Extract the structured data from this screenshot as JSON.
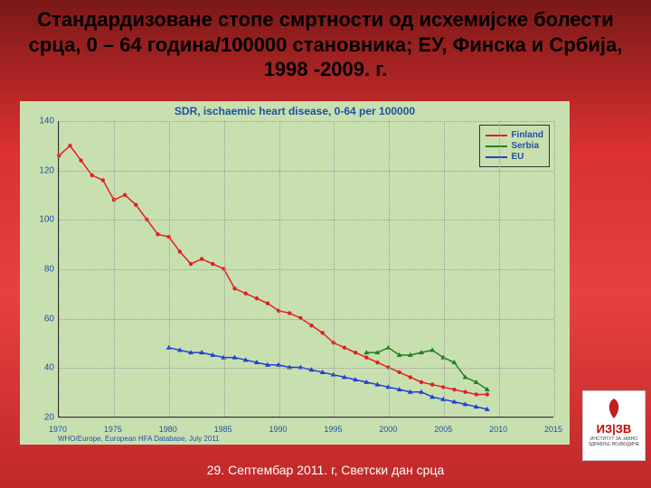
{
  "title": "Стандардизоване стопе смртности од исхемијске болести срца, 0 – 64 година/100000 становника; ЕУ, Финска и Србија, 1998 -2009. г.",
  "footer": "29. Септембар 2011. г, Светски дан срца",
  "logo": {
    "line1": "ИЗ|ЗВ",
    "line2": "ИНСТИТУТ ЗА ЈАВНО ЗДРАВЉЕ ВОЈВОДИНЕ"
  },
  "chart": {
    "type": "line",
    "title": "SDR, ischaemic heart disease, 0-64 per 100000",
    "source": "WHO/Europe, European HFA Database, July 2011",
    "background_color": "#c8e0b0",
    "grid_color": "#999999",
    "axis_label_color": "#2050a0",
    "xlim": [
      1970,
      2015
    ],
    "ylim": [
      20,
      140
    ],
    "yticks": [
      20,
      40,
      60,
      80,
      100,
      120,
      140
    ],
    "xticks": [
      1970,
      1975,
      1980,
      1985,
      1990,
      1995,
      2000,
      2005,
      2010,
      2015
    ],
    "series": [
      {
        "name": "Finland",
        "color": "#e02020",
        "marker": "circle",
        "line_width": 1.5,
        "x": [
          1970,
          1971,
          1972,
          1973,
          1974,
          1975,
          1976,
          1977,
          1978,
          1979,
          1980,
          1981,
          1982,
          1983,
          1984,
          1985,
          1986,
          1987,
          1988,
          1989,
          1990,
          1991,
          1992,
          1993,
          1994,
          1995,
          1996,
          1997,
          1998,
          1999,
          2000,
          2001,
          2002,
          2003,
          2004,
          2005,
          2006,
          2007,
          2008,
          2009
        ],
        "y": [
          126,
          130,
          124,
          118,
          116,
          108,
          110,
          106,
          100,
          94,
          93,
          87,
          82,
          84,
          82,
          80,
          72,
          70,
          68,
          66,
          63,
          62,
          60,
          57,
          54,
          50,
          48,
          46,
          44,
          42,
          40,
          38,
          36,
          34,
          33,
          32,
          31,
          30,
          29,
          29
        ]
      },
      {
        "name": "Serbia",
        "color": "#208020",
        "marker": "triangle",
        "line_width": 1.5,
        "x": [
          1998,
          1999,
          2000,
          2001,
          2002,
          2003,
          2004,
          2005,
          2006,
          2007,
          2008,
          2009
        ],
        "y": [
          46,
          46,
          48,
          45,
          45,
          46,
          47,
          44,
          42,
          36,
          34,
          31
        ]
      },
      {
        "name": "EU",
        "color": "#2040d0",
        "marker": "triangle",
        "line_width": 1.5,
        "x": [
          1980,
          1981,
          1982,
          1983,
          1984,
          1985,
          1986,
          1987,
          1988,
          1989,
          1990,
          1991,
          1992,
          1993,
          1994,
          1995,
          1996,
          1997,
          1998,
          1999,
          2000,
          2001,
          2002,
          2003,
          2004,
          2005,
          2006,
          2007,
          2008,
          2009
        ],
        "y": [
          48,
          47,
          46,
          46,
          45,
          44,
          44,
          43,
          42,
          41,
          41,
          40,
          40,
          39,
          38,
          37,
          36,
          35,
          34,
          33,
          32,
          31,
          30,
          30,
          28,
          27,
          26,
          25,
          24,
          23
        ]
      }
    ],
    "legend": {
      "position": "top-right",
      "items": [
        {
          "label": "Finland",
          "color": "#e02020"
        },
        {
          "label": "Serbia",
          "color": "#208020"
        },
        {
          "label": "EU",
          "color": "#2040d0"
        }
      ]
    }
  }
}
